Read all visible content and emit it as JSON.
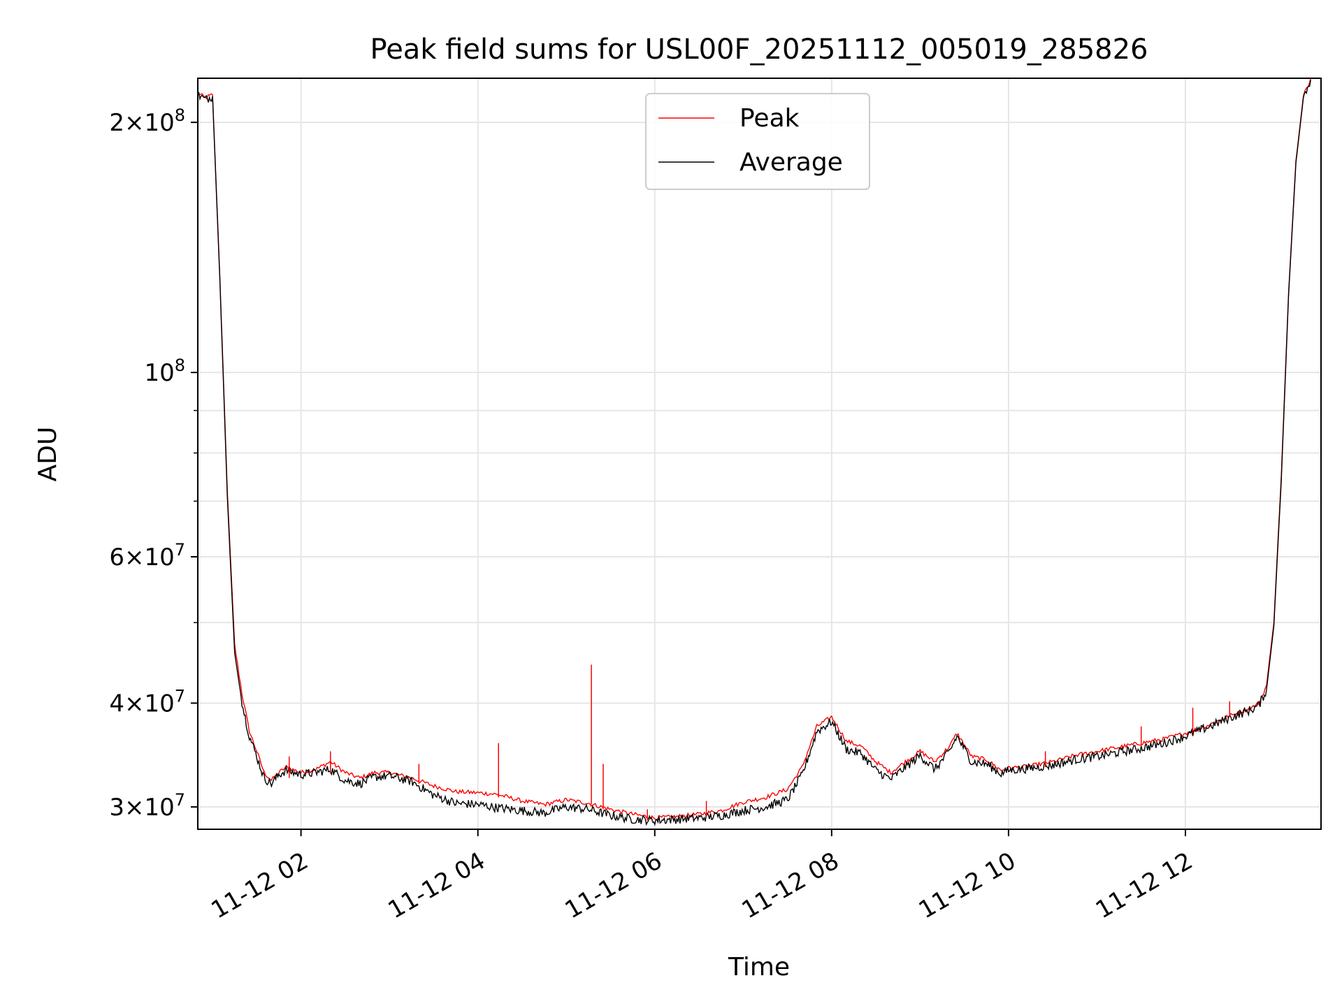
{
  "chart_data": {
    "type": "line",
    "title": "Peak field sums for USL00F_20251112_005019_285826",
    "xlabel": "Time",
    "ylabel": "ADU",
    "yscale": "log",
    "xlim": [
      "2025-11-12T00:50",
      "2025-11-12T13:32"
    ],
    "ylim": [
      28200000,
      226000000
    ],
    "grid": true,
    "legend_position": "upper center",
    "x_ticks": [
      {
        "t": "2025-11-12T02:00",
        "label": "11-12 02"
      },
      {
        "t": "2025-11-12T04:00",
        "label": "11-12 04"
      },
      {
        "t": "2025-11-12T06:00",
        "label": "11-12 06"
      },
      {
        "t": "2025-11-12T08:00",
        "label": "11-12 08"
      },
      {
        "t": "2025-11-12T10:00",
        "label": "11-12 10"
      },
      {
        "t": "2025-11-12T12:00",
        "label": "11-12 12"
      }
    ],
    "y_ticks": [
      {
        "v": 30000000,
        "mantissa": "3",
        "exp": "7"
      },
      {
        "v": 40000000,
        "mantissa": "4",
        "exp": "7"
      },
      {
        "v": 60000000,
        "mantissa": "6",
        "exp": "7"
      },
      {
        "v": 100000000,
        "mantissa": "",
        "exp": "8"
      },
      {
        "v": 200000000,
        "mantissa": "2",
        "exp": "8"
      }
    ],
    "y_minor_ticks": [
      50000000,
      70000000,
      80000000,
      90000000
    ],
    "series": [
      {
        "name": "Peak",
        "color": "#ff0000",
        "x": [
          "2025-11-12T00:50",
          "2025-11-12T00:55",
          "2025-11-12T01:00",
          "2025-11-12T01:05",
          "2025-11-12T01:10",
          "2025-11-12T01:15",
          "2025-11-12T01:20",
          "2025-11-12T01:25",
          "2025-11-12T01:30",
          "2025-11-12T01:35",
          "2025-11-12T01:40",
          "2025-11-12T01:45",
          "2025-11-12T01:50",
          "2025-11-12T02:00",
          "2025-11-12T02:10",
          "2025-11-12T02:20",
          "2025-11-12T02:30",
          "2025-11-12T02:40",
          "2025-11-12T02:50",
          "2025-11-12T03:00",
          "2025-11-12T03:15",
          "2025-11-12T03:30",
          "2025-11-12T03:45",
          "2025-11-12T04:00",
          "2025-11-12T04:10",
          "2025-11-12T04:15",
          "2025-11-12T04:30",
          "2025-11-12T04:45",
          "2025-11-12T05:00",
          "2025-11-12T05:15",
          "2025-11-12T05:30",
          "2025-11-12T05:45",
          "2025-11-12T06:00",
          "2025-11-12T06:15",
          "2025-11-12T06:30",
          "2025-11-12T06:45",
          "2025-11-12T07:00",
          "2025-11-12T07:15",
          "2025-11-12T07:30",
          "2025-11-12T07:40",
          "2025-11-12T07:50",
          "2025-11-12T08:00",
          "2025-11-12T08:10",
          "2025-11-12T08:20",
          "2025-11-12T08:30",
          "2025-11-12T08:40",
          "2025-11-12T08:50",
          "2025-11-12T09:00",
          "2025-11-12T09:10",
          "2025-11-12T09:20",
          "2025-11-12T09:25",
          "2025-11-12T09:35",
          "2025-11-12T09:45",
          "2025-11-12T09:55",
          "2025-11-12T10:00",
          "2025-11-12T10:15",
          "2025-11-12T10:30",
          "2025-11-12T10:45",
          "2025-11-12T11:00",
          "2025-11-12T11:15",
          "2025-11-12T11:30",
          "2025-11-12T11:45",
          "2025-11-12T12:00",
          "2025-11-12T12:15",
          "2025-11-12T12:30",
          "2025-11-12T12:45",
          "2025-11-12T12:50",
          "2025-11-12T12:55",
          "2025-11-12T13:00",
          "2025-11-12T13:05",
          "2025-11-12T13:10",
          "2025-11-12T13:15",
          "2025-11-12T13:20",
          "2025-11-12T13:25"
        ],
        "y": [
          217000000,
          214000000,
          216000000,
          130000000,
          72000000,
          47000000,
          41000000,
          37000000,
          35000000,
          33000000,
          32300000,
          33000000,
          33500000,
          33000000,
          33300000,
          34000000,
          33000000,
          32500000,
          33000000,
          33000000,
          32500000,
          31800000,
          31300000,
          31200000,
          31100000,
          31000000,
          30500000,
          30200000,
          30600000,
          30300000,
          29800000,
          29400000,
          29100000,
          29200000,
          29400000,
          29700000,
          30400000,
          30800000,
          31500000,
          33500000,
          37500000,
          38500000,
          36000000,
          35500000,
          34000000,
          33000000,
          34000000,
          35000000,
          34000000,
          35500000,
          36800000,
          34500000,
          34200000,
          33200000,
          33400000,
          33600000,
          34000000,
          34600000,
          35000000,
          35400000,
          35800000,
          36200000,
          36800000,
          37600000,
          38600000,
          39500000,
          40000000,
          42000000,
          50000000,
          75000000,
          125000000,
          180000000,
          215000000,
          226000000
        ]
      },
      {
        "name": "Average",
        "color": "#000000",
        "x": [
          "2025-11-12T00:50",
          "2025-11-12T00:55",
          "2025-11-12T01:00",
          "2025-11-12T01:05",
          "2025-11-12T01:10",
          "2025-11-12T01:15",
          "2025-11-12T01:20",
          "2025-11-12T01:25",
          "2025-11-12T01:30",
          "2025-11-12T01:35",
          "2025-11-12T01:40",
          "2025-11-12T01:45",
          "2025-11-12T01:50",
          "2025-11-12T02:00",
          "2025-11-12T02:10",
          "2025-11-12T02:20",
          "2025-11-12T02:30",
          "2025-11-12T02:40",
          "2025-11-12T02:50",
          "2025-11-12T03:00",
          "2025-11-12T03:15",
          "2025-11-12T03:30",
          "2025-11-12T03:45",
          "2025-11-12T04:00",
          "2025-11-12T04:10",
          "2025-11-12T04:15",
          "2025-11-12T04:30",
          "2025-11-12T04:45",
          "2025-11-12T05:00",
          "2025-11-12T05:15",
          "2025-11-12T05:30",
          "2025-11-12T05:45",
          "2025-11-12T06:00",
          "2025-11-12T06:15",
          "2025-11-12T06:30",
          "2025-11-12T06:45",
          "2025-11-12T07:00",
          "2025-11-12T07:15",
          "2025-11-12T07:30",
          "2025-11-12T07:40",
          "2025-11-12T07:50",
          "2025-11-12T08:00",
          "2025-11-12T08:10",
          "2025-11-12T08:20",
          "2025-11-12T08:30",
          "2025-11-12T08:40",
          "2025-11-12T08:50",
          "2025-11-12T09:00",
          "2025-11-12T09:10",
          "2025-11-12T09:20",
          "2025-11-12T09:25",
          "2025-11-12T09:35",
          "2025-11-12T09:45",
          "2025-11-12T09:55",
          "2025-11-12T10:00",
          "2025-11-12T10:15",
          "2025-11-12T10:30",
          "2025-11-12T10:45",
          "2025-11-12T11:00",
          "2025-11-12T11:15",
          "2025-11-12T11:30",
          "2025-11-12T11:45",
          "2025-11-12T12:00",
          "2025-11-12T12:15",
          "2025-11-12T12:30",
          "2025-11-12T12:45",
          "2025-11-12T12:50",
          "2025-11-12T12:55",
          "2025-11-12T13:00",
          "2025-11-12T13:05",
          "2025-11-12T13:10",
          "2025-11-12T13:15",
          "2025-11-12T13:20",
          "2025-11-12T13:25"
        ],
        "y": [
          216000000,
          213000000,
          215000000,
          129000000,
          71000000,
          46000000,
          40000000,
          36500000,
          34500000,
          32500000,
          32000000,
          32800000,
          33200000,
          32800000,
          33000000,
          33300000,
          32300000,
          32000000,
          32600000,
          32700000,
          32200000,
          31000000,
          30300000,
          30200000,
          30000000,
          29900000,
          29700000,
          29500000,
          30000000,
          29800000,
          29300000,
          29000000,
          28900000,
          29000000,
          29100000,
          29300000,
          29700000,
          30000000,
          30600000,
          32800000,
          37000000,
          38000000,
          35200000,
          34800000,
          33200000,
          32400000,
          33500000,
          34600000,
          33300000,
          35000000,
          36500000,
          34000000,
          33800000,
          32900000,
          33200000,
          33400000,
          33700000,
          34200000,
          34500000,
          34900000,
          35300000,
          35800000,
          36500000,
          37400000,
          38400000,
          39300000,
          39800000,
          41500000,
          49500000,
          74000000,
          124000000,
          179000000,
          214000000,
          225000000
        ]
      }
    ],
    "spikes": [
      {
        "series": "Peak",
        "t": "2025-11-12T01:52",
        "base": 32500000,
        "top": 34500000
      },
      {
        "series": "Peak",
        "t": "2025-11-12T02:20",
        "base": 33000000,
        "top": 35000000
      },
      {
        "series": "Peak",
        "t": "2025-11-12T03:20",
        "base": 32000000,
        "top": 33800000
      },
      {
        "series": "Peak",
        "t": "2025-11-12T04:14",
        "base": 30800000,
        "top": 35800000
      },
      {
        "series": "Peak",
        "t": "2025-11-12T05:17",
        "base": 30200000,
        "top": 44500000
      },
      {
        "series": "Peak",
        "t": "2025-11-12T05:25",
        "base": 29800000,
        "top": 33800000
      },
      {
        "series": "Peak",
        "t": "2025-11-12T05:55",
        "base": 28900000,
        "top": 29800000
      },
      {
        "series": "Peak",
        "t": "2025-11-12T06:35",
        "base": 29300000,
        "top": 30500000
      },
      {
        "series": "Peak",
        "t": "2025-11-12T10:25",
        "base": 33500000,
        "top": 35000000
      },
      {
        "series": "Peak",
        "t": "2025-11-12T11:30",
        "base": 35600000,
        "top": 37500000
      },
      {
        "series": "Peak",
        "t": "2025-11-12T12:05",
        "base": 36800000,
        "top": 39500000
      },
      {
        "series": "Peak",
        "t": "2025-11-12T12:30",
        "base": 38500000,
        "top": 40200000
      }
    ]
  }
}
